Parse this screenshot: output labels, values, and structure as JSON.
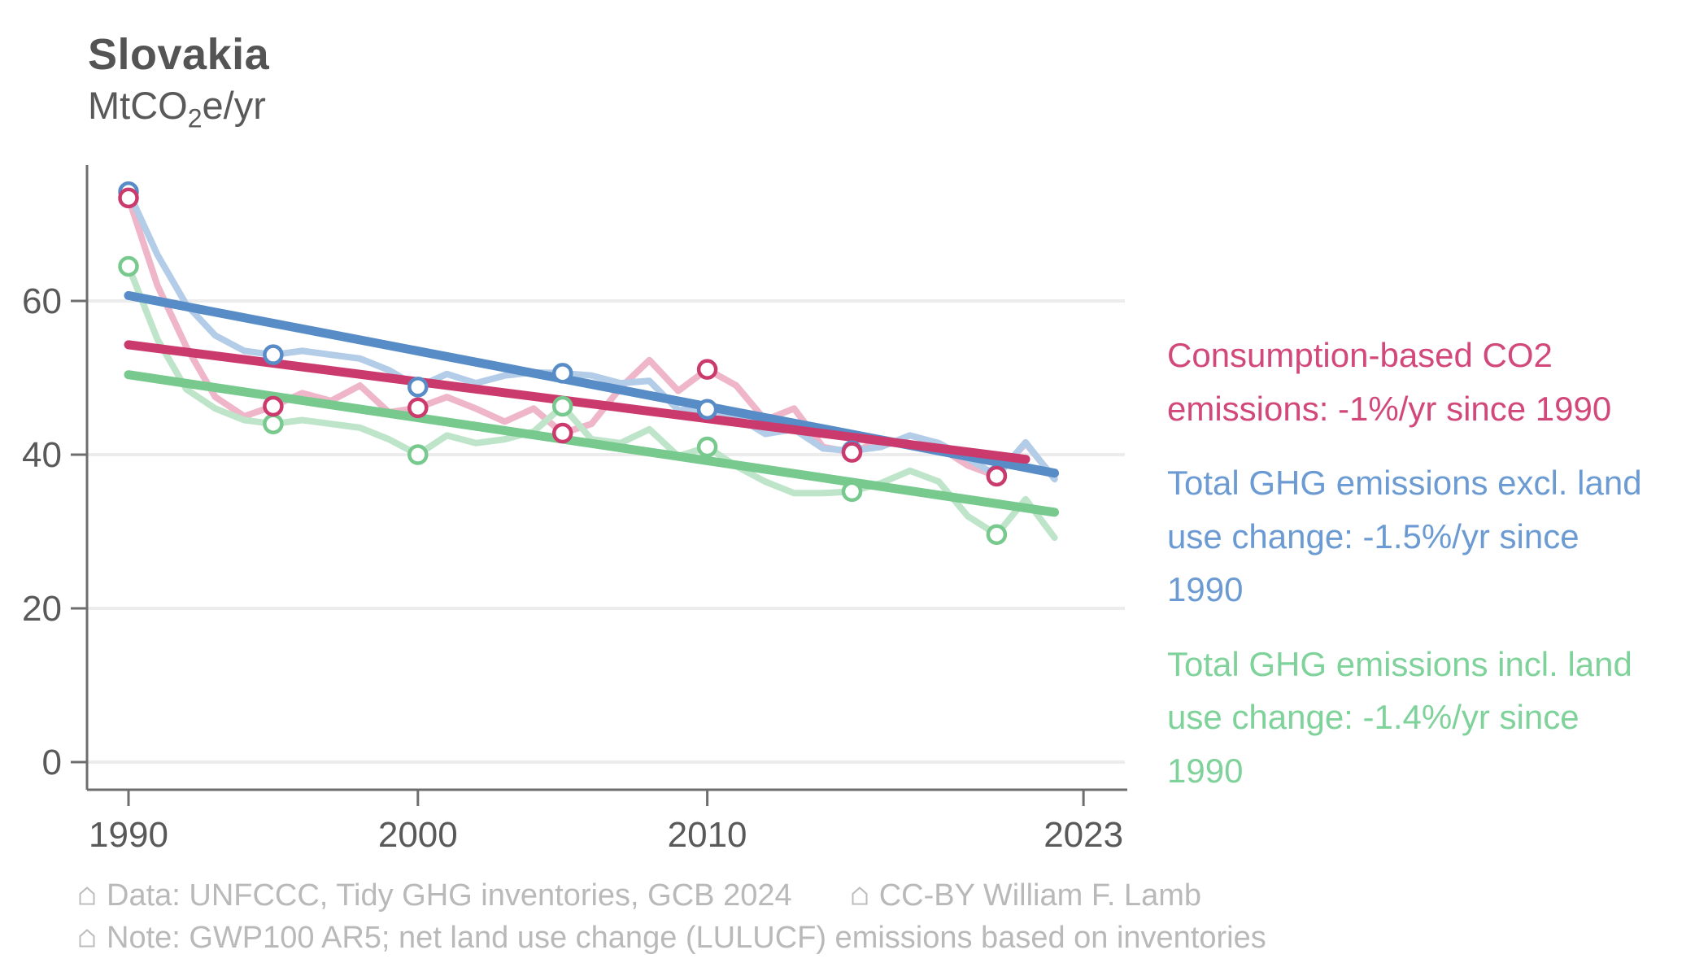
{
  "header": {
    "title": "Slovakia",
    "subtitle_prefix": "MtCO",
    "subtitle_sub": "2",
    "subtitle_suffix": "e/yr"
  },
  "legend": {
    "items": [
      {
        "label": "Consumption-based CO2 emissions: -1%/yr since 1990",
        "color": "#d2487a"
      },
      {
        "label": "Total GHG emissions excl. land use change: -1.5%/yr since 1990",
        "color": "#6b9bd2"
      },
      {
        "label": "Total GHG emissions incl. land use change: -1.4%/yr since 1990",
        "color": "#7ed29a"
      }
    ]
  },
  "footer": {
    "line1_a": "Data: UNFCCC, Tidy GHG inventories, GCB 2024",
    "line1_b": "CC-BY William F. Lamb",
    "line2": "Note: GWP100 AR5; net land use change (LULUCF) emissions based on inventories"
  },
  "chart_data": {
    "type": "line",
    "title": "Slovakia",
    "ylabel": "MtCO2e/yr",
    "xlabel": "",
    "grid": true,
    "legend_position": "right",
    "start_year": 1990,
    "end_year": 2022,
    "xticks": [
      1990,
      2000,
      2010,
      2023
    ],
    "yticks": [
      0,
      20,
      40,
      60
    ],
    "ylim": [
      0,
      77.5
    ],
    "xlim": [
      1988.6,
      2024.5
    ],
    "marker_years": [
      1990,
      1995,
      2000,
      2005,
      2010,
      2015,
      2020
    ],
    "axis_color": "#6e6e6e",
    "grid_color": "#ececec",
    "tick_label_color": "#595959",
    "series": [
      {
        "name": "Consumption-based CO2 emissions",
        "rate_label": "-1%/yr since 1990",
        "color": "#cb3a6c",
        "color_light": "#efb5c9",
        "values": [
          73.4,
          62.0,
          54.0,
          47.5,
          45.0,
          46.3,
          48.0,
          47.0,
          49.0,
          45.5,
          46.1,
          47.5,
          46.0,
          44.3,
          46.0,
          42.8,
          44.0,
          48.7,
          52.3,
          48.3,
          51.1,
          49.0,
          44.5,
          46.0,
          41.0,
          40.3,
          41.8,
          41.3,
          41.0,
          38.6,
          37.2,
          41.5,
          36.9
        ],
        "trend": {
          "year_start": 1990,
          "value_start": 54.3,
          "year_end": 2021,
          "value_end": 39.4
        }
      },
      {
        "name": "Total GHG emissions excl. land use change",
        "rate_label": "-1.5%/yr since 1990",
        "color": "#588cc6",
        "color_light": "#b3cce8",
        "values": [
          74.2,
          66.0,
          59.5,
          55.5,
          53.5,
          53.0,
          53.5,
          53.0,
          52.5,
          51.0,
          48.8,
          50.5,
          49.3,
          50.3,
          50.7,
          50.6,
          50.3,
          49.3,
          49.6,
          45.8,
          45.9,
          45.0,
          42.7,
          43.3,
          40.8,
          40.5,
          41.0,
          42.5,
          41.5,
          39.5,
          37.3,
          41.6,
          36.8
        ],
        "trend": {
          "year_start": 1990,
          "value_start": 60.7,
          "year_end": 2022,
          "value_end": 37.6
        }
      },
      {
        "name": "Total GHG emissions incl. land use change",
        "rate_label": "-1.4%/yr since 1990",
        "color": "#77c98e",
        "color_light": "#bee5c9",
        "values": [
          64.5,
          55.0,
          48.5,
          46.0,
          44.5,
          44.0,
          44.5,
          44.0,
          43.5,
          42.0,
          40.0,
          42.5,
          41.5,
          42.0,
          43.0,
          46.3,
          42.0,
          41.5,
          43.3,
          39.8,
          41.0,
          38.5,
          36.5,
          35.0,
          35.0,
          35.2,
          36.3,
          37.9,
          36.5,
          32.0,
          29.6,
          34.2,
          29.2
        ],
        "trend": {
          "year_start": 1990,
          "value_start": 50.4,
          "year_end": 2022,
          "value_end": 32.5
        }
      }
    ]
  }
}
